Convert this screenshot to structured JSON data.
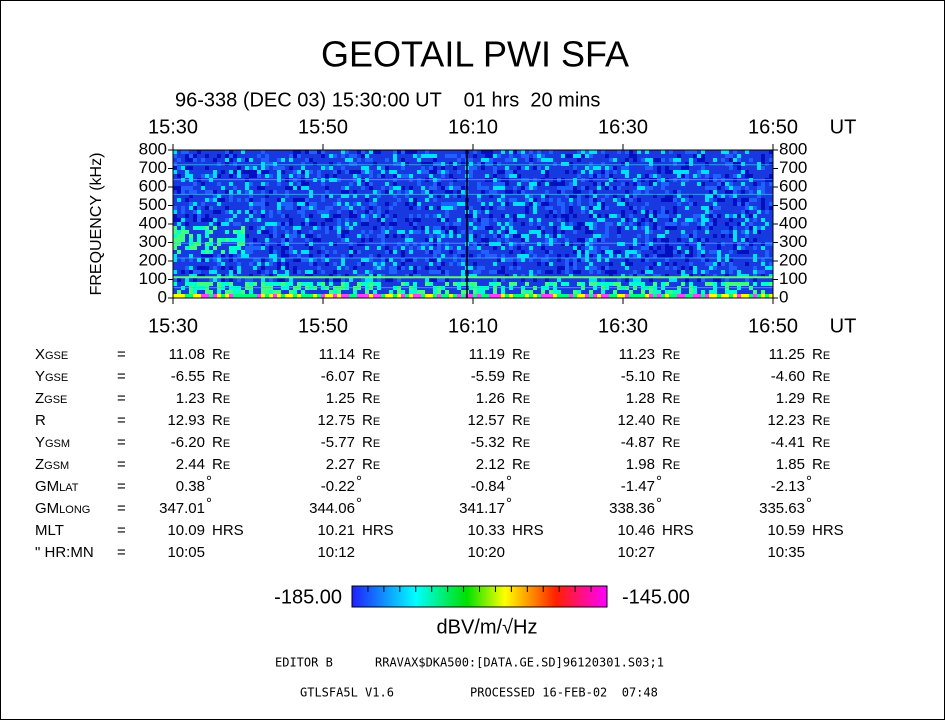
{
  "title": "GEOTAIL  PWI  SFA",
  "subtitle": "96-338 (DEC 03) 15:30:00 UT    01 hrs  20 mins",
  "plot": {
    "time_labels": [
      "15:30",
      "15:50",
      "16:10",
      "16:30",
      "16:50"
    ],
    "time_unit": "UT",
    "freq_labels": [
      "800",
      "700",
      "600",
      "500",
      "400",
      "300",
      "200",
      "100",
      "0"
    ],
    "y_axis_label": "FREQUENCY (kHz)"
  },
  "table": {
    "rows": [
      {
        "label": "Xgse",
        "values": [
          "11.08",
          "11.14",
          "11.19",
          "11.23",
          "11.25"
        ],
        "unit": "Re"
      },
      {
        "label": "Ygse",
        "values": [
          "-6.55",
          "-6.07",
          "-5.59",
          "-5.10",
          "-4.60"
        ],
        "unit": "Re"
      },
      {
        "label": "Zgse",
        "values": [
          "1.23",
          "1.25",
          "1.26",
          "1.28",
          "1.29"
        ],
        "unit": "Re"
      },
      {
        "label": "R",
        "values": [
          "12.93",
          "12.75",
          "12.57",
          "12.40",
          "12.23"
        ],
        "unit": "Re"
      },
      {
        "label": "Ygsm",
        "values": [
          "-6.20",
          "-5.77",
          "-5.32",
          "-4.87",
          "-4.41"
        ],
        "unit": "Re"
      },
      {
        "label": "Zgsm",
        "values": [
          "2.44",
          "2.27",
          "2.12",
          "1.98",
          "1.85"
        ],
        "unit": "Re"
      },
      {
        "label": "GMlat",
        "values": [
          "0.38",
          "-0.22",
          "-0.84",
          "-1.47",
          "-2.13"
        ],
        "unit": "°"
      },
      {
        "label": "GMlong",
        "values": [
          "347.01",
          "344.06",
          "341.17",
          "338.36",
          "335.63"
        ],
        "unit": "°"
      },
      {
        "label": "MLT",
        "values": [
          "10.09",
          "10.21",
          "10.33",
          "10.46",
          "10.59"
        ],
        "unit": "HRS"
      },
      {
        "label": "\" HR:MN",
        "values": [
          "10:05",
          "10:12",
          "10:20",
          "10:27",
          "10:35"
        ]
      }
    ],
    "equals": "="
  },
  "colorbar": {
    "min_label": "-185.00",
    "max_label": "-145.00",
    "unit_label": "dBV/m/√Hz"
  },
  "footer": {
    "editor": "EDITOR B",
    "file": "RRAVAX$DKA500:[DATA.GE.SD]96120301.S03;1",
    "version": "GTLSFA5L V1.6",
    "processed": "PROCESSED 16-FEB-02  07:48"
  }
}
